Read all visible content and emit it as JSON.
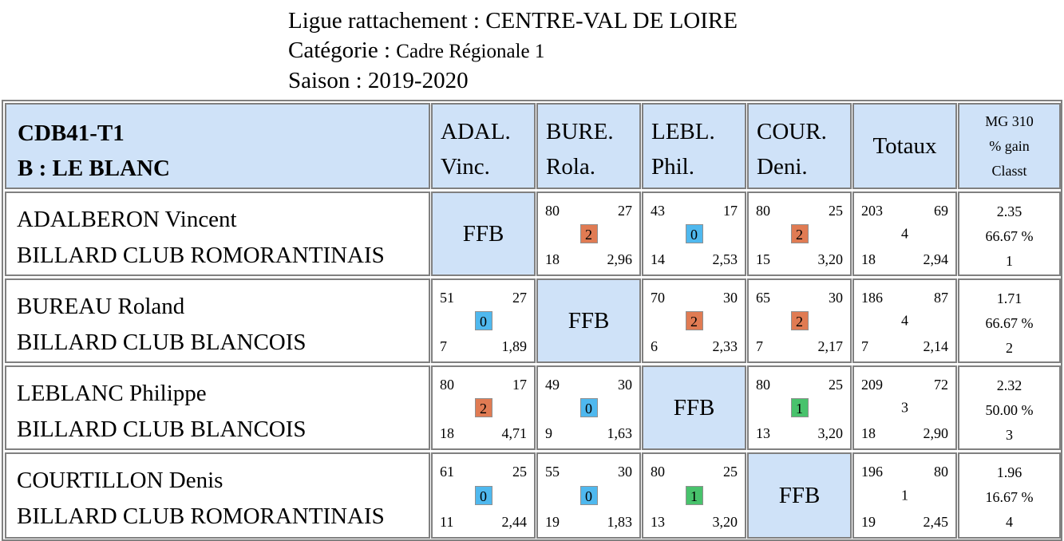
{
  "header": {
    "ligue_label": "Ligue rattachement : ",
    "ligue_value": "CENTRE-VAL DE LOIRE",
    "categorie_label": "Catégorie : ",
    "categorie_value": "Cadre Régionale 1",
    "saison_label": "Saison : ",
    "saison_value": "2019-2020"
  },
  "table": {
    "team_code": "CDB41-T1",
    "team_name": "B : LE BLANC",
    "columns": [
      {
        "line1": "ADAL.",
        "line2": "Vinc."
      },
      {
        "line1": "BURE.",
        "line2": "Rola."
      },
      {
        "line1": "LEBL.",
        "line2": "Phil."
      },
      {
        "line1": "COUR.",
        "line2": "Deni."
      }
    ],
    "totaux_label": "Totaux",
    "mg_header": {
      "line1": "MG 310",
      "line2": "% gain",
      "line3": "Classt"
    },
    "ffb_label": "FFB",
    "rows": [
      {
        "name": "ADALBERON Vincent",
        "club": "BILLARD CLUB ROMORANTINAIS",
        "cells": [
          null,
          {
            "tl": "80",
            "tr": "27",
            "pts": "2",
            "bl": "18",
            "br": "2,96",
            "color": "#e07b53"
          },
          {
            "tl": "43",
            "tr": "17",
            "pts": "0",
            "bl": "14",
            "br": "2,53",
            "color": "#4fb8ee"
          },
          {
            "tl": "80",
            "tr": "25",
            "pts": "2",
            "bl": "15",
            "br": "3,20",
            "color": "#e07b53"
          }
        ],
        "totals": {
          "tl": "203",
          "tr": "69",
          "mid": "4",
          "bl": "18",
          "br": "2,94"
        },
        "stats": {
          "mg": "2.35",
          "gain": "66.67 %",
          "classt": "1"
        }
      },
      {
        "name": "BUREAU Roland",
        "club": "BILLARD CLUB BLANCOIS",
        "cells": [
          {
            "tl": "51",
            "tr": "27",
            "pts": "0",
            "bl": "7",
            "br": "1,89",
            "color": "#4fb8ee"
          },
          null,
          {
            "tl": "70",
            "tr": "30",
            "pts": "2",
            "bl": "6",
            "br": "2,33",
            "color": "#e07b53"
          },
          {
            "tl": "65",
            "tr": "30",
            "pts": "2",
            "bl": "7",
            "br": "2,17",
            "color": "#e07b53"
          }
        ],
        "totals": {
          "tl": "186",
          "tr": "87",
          "mid": "4",
          "bl": "7",
          "br": "2,14"
        },
        "stats": {
          "mg": "1.71",
          "gain": "66.67 %",
          "classt": "2"
        }
      },
      {
        "name": "LEBLANC Philippe",
        "club": "BILLARD CLUB BLANCOIS",
        "cells": [
          {
            "tl": "80",
            "tr": "17",
            "pts": "2",
            "bl": "18",
            "br": "4,71",
            "color": "#e07b53"
          },
          {
            "tl": "49",
            "tr": "30",
            "pts": "0",
            "bl": "9",
            "br": "1,63",
            "color": "#4fb8ee"
          },
          null,
          {
            "tl": "80",
            "tr": "25",
            "pts": "1",
            "bl": "13",
            "br": "3,20",
            "color": "#48c26c"
          }
        ],
        "totals": {
          "tl": "209",
          "tr": "72",
          "mid": "3",
          "bl": "18",
          "br": "2,90"
        },
        "stats": {
          "mg": "2.32",
          "gain": "50.00 %",
          "classt": "3"
        }
      },
      {
        "name": "COURTILLON Denis",
        "club": "BILLARD CLUB ROMORANTINAIS",
        "cells": [
          {
            "tl": "61",
            "tr": "25",
            "pts": "0",
            "bl": "11",
            "br": "2,44",
            "color": "#4fb8ee"
          },
          {
            "tl": "55",
            "tr": "30",
            "pts": "0",
            "bl": "19",
            "br": "1,83",
            "color": "#4fb8ee"
          },
          {
            "tl": "80",
            "tr": "25",
            "pts": "1",
            "bl": "13",
            "br": "3,20",
            "color": "#48c26c"
          },
          null
        ],
        "totals": {
          "tl": "196",
          "tr": "80",
          "mid": "1",
          "bl": "19",
          "br": "2,45"
        },
        "stats": {
          "mg": "1.96",
          "gain": "16.67 %",
          "classt": "4"
        }
      }
    ]
  }
}
